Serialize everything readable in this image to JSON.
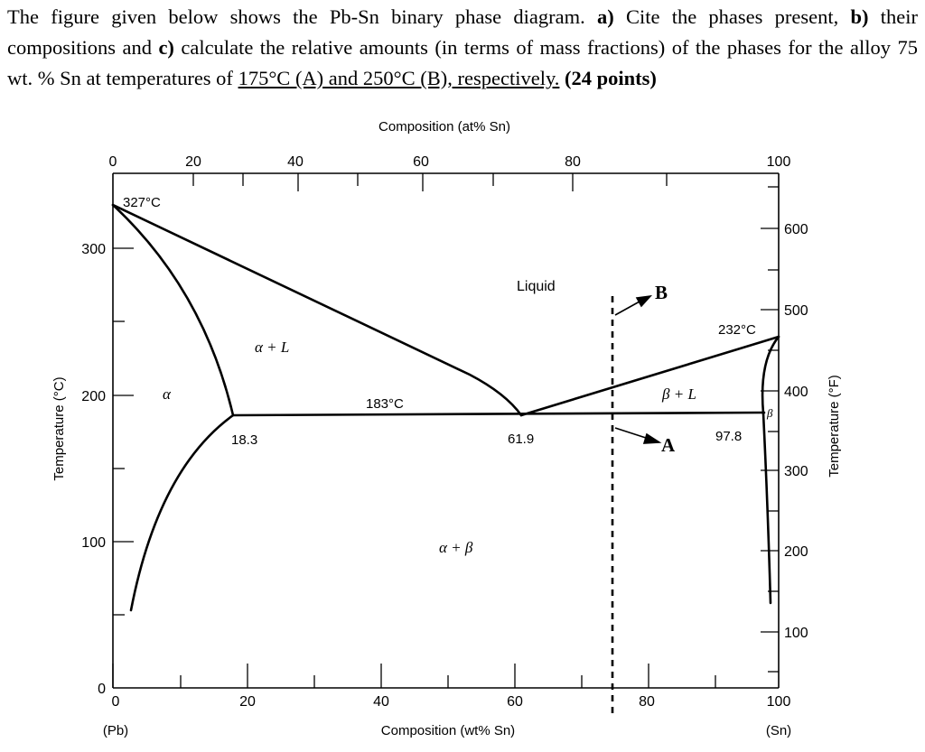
{
  "question": {
    "intro": "The figure given below shows the Pb-Sn binary phase diagram. ",
    "part_a_marker": "a)",
    "part_a": " Cite the phases present, ",
    "part_b_marker": "b)",
    "part_b": " their compositions and ",
    "part_c_marker": "c)",
    "part_c": " calculate the relative amounts (in terms of mass fractions) of the phases for the alloy 75 wt. % Sn at temperatures of ",
    "temp_a": "175°C (A) and 250°C (B), respectively.",
    "points": "(24 points)"
  },
  "diagram": {
    "top_axis_title": "Composition (at% Sn)",
    "top_ticks": [
      "0",
      "20",
      "40",
      "60",
      "80",
      "100"
    ],
    "bottom_axis_title": "Composition (wt% Sn)",
    "bottom_ticks": [
      "0",
      "20",
      "40",
      "60",
      "80",
      "100"
    ],
    "left_axis_title": "Temperature (°C)",
    "left_ticks": [
      "0",
      "100",
      "200",
      "300"
    ],
    "right_axis_title": "Temperature (°F)",
    "right_ticks": [
      "100",
      "200",
      "300",
      "400",
      "500",
      "600"
    ],
    "pb_label": "(Pb)",
    "sn_label": "(Sn)",
    "labels": {
      "pb_melt": "327°C",
      "sn_melt": "232°C",
      "eutectic_temp": "183°C",
      "alpha_solvus": "18.3",
      "eutectic_comp": "61.9",
      "beta_solvus": "97.8",
      "liquid": "Liquid",
      "alpha_plus_l": "α + L",
      "alpha": "α",
      "beta_plus_l": "β + L",
      "beta": "β",
      "alpha_plus_beta": "α + β",
      "point_a": "A",
      "point_b": "B"
    }
  }
}
